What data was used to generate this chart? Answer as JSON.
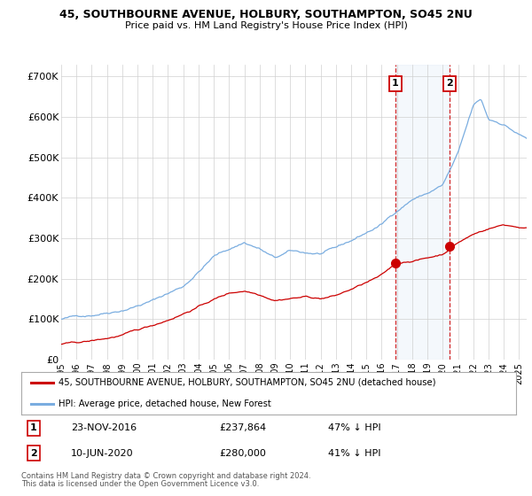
{
  "title": "45, SOUTHBOURNE AVENUE, HOLBURY, SOUTHAMPTON, SO45 2NU",
  "subtitle": "Price paid vs. HM Land Registry's House Price Index (HPI)",
  "legend_line1": "45, SOUTHBOURNE AVENUE, HOLBURY, SOUTHAMPTON, SO45 2NU (detached house)",
  "legend_line2": "HPI: Average price, detached house, New Forest",
  "footer1": "Contains HM Land Registry data © Crown copyright and database right 2024.",
  "footer2": "This data is licensed under the Open Government Licence v3.0.",
  "annotation1_label": "1",
  "annotation1_date": "23-NOV-2016",
  "annotation1_price": "£237,864",
  "annotation1_hpi": "47% ↓ HPI",
  "annotation2_label": "2",
  "annotation2_date": "10-JUN-2020",
  "annotation2_price": "£280,000",
  "annotation2_hpi": "41% ↓ HPI",
  "hpi_color": "#7aade0",
  "price_color": "#cc0000",
  "annotation_vline_color": "#cc0000",
  "grid_color": "#d0d0d0",
  "background_color": "#ffffff",
  "plot_bg_color": "#ffffff",
  "ylim": [
    0,
    730000
  ],
  "yticks": [
    0,
    100000,
    200000,
    300000,
    400000,
    500000,
    600000,
    700000
  ],
  "ytick_labels": [
    "£0",
    "£100K",
    "£200K",
    "£300K",
    "£400K",
    "£500K",
    "£600K",
    "£700K"
  ],
  "ann1_x": 2016.9,
  "ann1_y": 237864,
  "ann2_x": 2020.45,
  "ann2_y": 280000,
  "xmin": 1995,
  "xmax": 2025.5
}
